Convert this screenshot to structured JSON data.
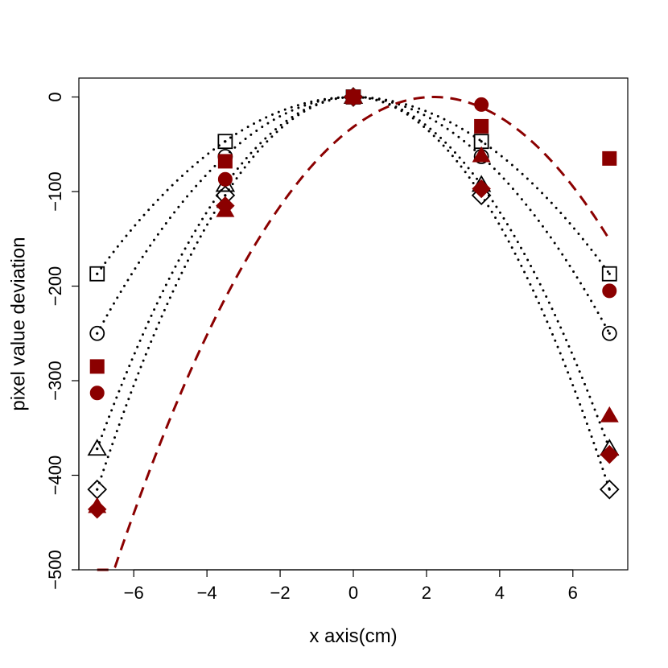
{
  "chart_data": {
    "type": "scatter",
    "xlabel": "x axis(cm)",
    "ylabel": "pixel value deviation",
    "xlim": [
      -7.5,
      7.5
    ],
    "ylim": [
      -500,
      20
    ],
    "xticks": [
      -6,
      -4,
      -2,
      0,
      2,
      4,
      6
    ],
    "xtick_labels": [
      "−6",
      "−4",
      "−2",
      "0",
      "2",
      "4",
      "6"
    ],
    "yticks": [
      -500,
      -400,
      -300,
      -200,
      -100,
      0
    ],
    "ytick_labels": [
      "−500",
      "−400",
      "−300",
      "−200",
      "−100",
      "0"
    ],
    "grid": false,
    "colors": {
      "dark": "#8b0000",
      "black": "#000000"
    },
    "x": [
      -7,
      -3.5,
      0,
      3.5,
      7
    ],
    "series": [
      {
        "marker": "square-open-dot",
        "color": "#000000",
        "values": [
          -187,
          -47,
          0,
          -47,
          -187
        ]
      },
      {
        "marker": "circle-open-dot",
        "color": "#000000",
        "values": [
          -250,
          -63,
          0,
          -63,
          -250
        ]
      },
      {
        "marker": "triangle-open-dot",
        "color": "#000000",
        "values": [
          -372,
          -93,
          0,
          -93,
          -372
        ]
      },
      {
        "marker": "diamond-open-dot",
        "color": "#000000",
        "values": [
          -415,
          -104,
          0,
          -104,
          -415
        ]
      },
      {
        "marker": "square-filled",
        "color": "#8b0000",
        "values": [
          -285,
          -68,
          0,
          -31,
          -65
        ]
      },
      {
        "marker": "circle-filled",
        "color": "#8b0000",
        "values": [
          -313,
          -87,
          0,
          -8,
          -205
        ]
      },
      {
        "marker": "triangle-filled",
        "color": "#8b0000",
        "values": [
          -433,
          -120,
          0,
          -62,
          -337
        ]
      },
      {
        "marker": "diamond-filled",
        "color": "#8b0000",
        "values": [
          -436,
          -115,
          0,
          -97,
          -378
        ]
      }
    ],
    "fit_curves": [
      {
        "style": "dotted",
        "color": "#000000",
        "a": -3.816,
        "b": 0
      },
      {
        "style": "dotted",
        "color": "#000000",
        "a": -5.102,
        "b": 0
      },
      {
        "style": "dotted",
        "color": "#000000",
        "a": -7.592,
        "b": 0
      },
      {
        "style": "dotted",
        "color": "#000000",
        "a": -8.469,
        "b": 0
      },
      {
        "style": "dashed",
        "color": "#8b0000",
        "a": -6.55,
        "b": 2.2,
        "xrange": [
          -7,
          7
        ]
      }
    ]
  }
}
